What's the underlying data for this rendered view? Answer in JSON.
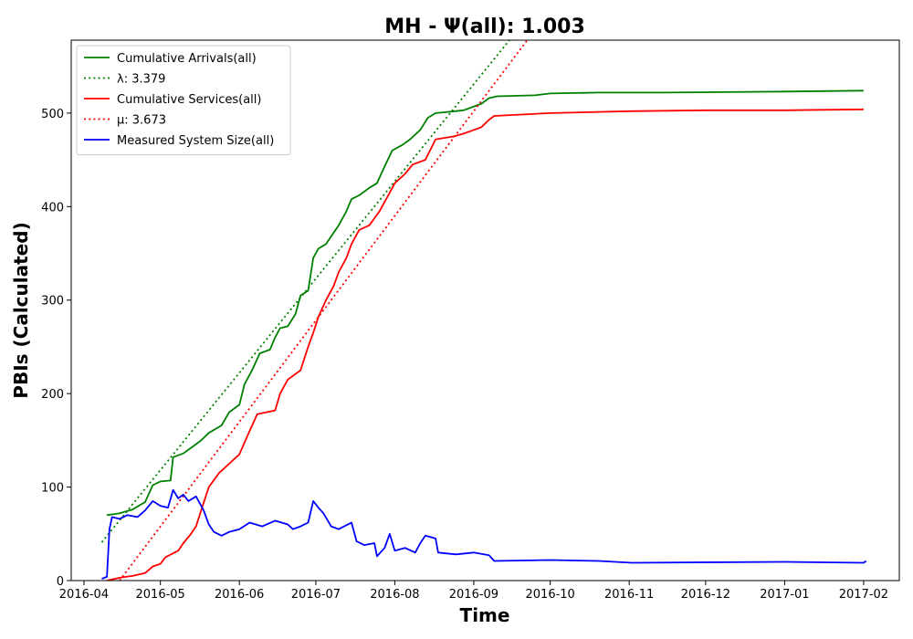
{
  "chart_data": {
    "type": "line",
    "title": "MH -  Ψ(all): 1.003",
    "xlabel": "Time",
    "ylabel": "PBIs (Calculated)",
    "x_axis_type": "date",
    "xlim": [
      "2016-03-27",
      "2017-02-15"
    ],
    "ylim": [
      0,
      578
    ],
    "x_ticks": [
      "2016-04",
      "2016-05",
      "2016-06",
      "2016-07",
      "2016-08",
      "2016-09",
      "2016-10",
      "2016-11",
      "2016-12",
      "2017-01",
      "2017-02"
    ],
    "y_ticks": [
      0,
      100,
      200,
      300,
      400,
      500
    ],
    "grid": false,
    "legend_position": "top-left",
    "series": [
      {
        "name": "Cumulative Arrivals(all)",
        "color": "#008000",
        "style": "solid",
        "points": [
          [
            "2016-04-10",
            70
          ],
          [
            "2016-04-15",
            72
          ],
          [
            "2016-04-20",
            76
          ],
          [
            "2016-04-25",
            84
          ],
          [
            "2016-04-28",
            102
          ],
          [
            "2016-05-01",
            106
          ],
          [
            "2016-05-05",
            107
          ],
          [
            "2016-05-06",
            132
          ],
          [
            "2016-05-10",
            136
          ],
          [
            "2016-05-13",
            142
          ],
          [
            "2016-05-17",
            150
          ],
          [
            "2016-05-20",
            158
          ],
          [
            "2016-05-25",
            166
          ],
          [
            "2016-05-28",
            180
          ],
          [
            "2016-06-01",
            188
          ],
          [
            "2016-06-03",
            210
          ],
          [
            "2016-06-06",
            225
          ],
          [
            "2016-06-09",
            243
          ],
          [
            "2016-06-13",
            247
          ],
          [
            "2016-06-15",
            260
          ],
          [
            "2016-06-17",
            270
          ],
          [
            "2016-06-20",
            272
          ],
          [
            "2016-06-23",
            285
          ],
          [
            "2016-06-25",
            305
          ],
          [
            "2016-06-28",
            310
          ],
          [
            "2016-06-30",
            345
          ],
          [
            "2016-07-02",
            355
          ],
          [
            "2016-07-05",
            360
          ],
          [
            "2016-07-08",
            372
          ],
          [
            "2016-07-10",
            380
          ],
          [
            "2016-07-13",
            395
          ],
          [
            "2016-07-15",
            408
          ],
          [
            "2016-07-18",
            412
          ],
          [
            "2016-07-22",
            420
          ],
          [
            "2016-07-25",
            425
          ],
          [
            "2016-07-28",
            443
          ],
          [
            "2016-07-31",
            460
          ],
          [
            "2016-08-04",
            466
          ],
          [
            "2016-08-07",
            472
          ],
          [
            "2016-08-11",
            482
          ],
          [
            "2016-08-14",
            495
          ],
          [
            "2016-08-17",
            500
          ],
          [
            "2016-08-21",
            501
          ],
          [
            "2016-08-28",
            503
          ],
          [
            "2016-09-04",
            510
          ],
          [
            "2016-09-07",
            516
          ],
          [
            "2016-09-10",
            518
          ],
          [
            "2016-09-25",
            519
          ],
          [
            "2016-10-01",
            521
          ],
          [
            "2016-10-20",
            522
          ],
          [
            "2016-11-15",
            522
          ],
          [
            "2017-01-01",
            523
          ],
          [
            "2017-02-01",
            524
          ]
        ]
      },
      {
        "name": "λ: 3.379",
        "color": "#008000",
        "style": "dotted",
        "points": [
          [
            "2016-04-08",
            41
          ],
          [
            "2016-09-15",
            578
          ]
        ]
      },
      {
        "name": "Cumulative Services(all)",
        "color": "#ff0000",
        "style": "solid",
        "points": [
          [
            "2016-04-10",
            0
          ],
          [
            "2016-04-15",
            3
          ],
          [
            "2016-04-20",
            5
          ],
          [
            "2016-04-25",
            8
          ],
          [
            "2016-04-28",
            15
          ],
          [
            "2016-05-01",
            18
          ],
          [
            "2016-05-03",
            25
          ],
          [
            "2016-05-08",
            32
          ],
          [
            "2016-05-10",
            40
          ],
          [
            "2016-05-13",
            50
          ],
          [
            "2016-05-15",
            58
          ],
          [
            "2016-05-17",
            75
          ],
          [
            "2016-05-20",
            100
          ],
          [
            "2016-05-24",
            115
          ],
          [
            "2016-05-28",
            125
          ],
          [
            "2016-06-01",
            135
          ],
          [
            "2016-06-05",
            160
          ],
          [
            "2016-06-08",
            178
          ],
          [
            "2016-06-15",
            182
          ],
          [
            "2016-06-17",
            200
          ],
          [
            "2016-06-20",
            215
          ],
          [
            "2016-06-25",
            225
          ],
          [
            "2016-06-28",
            250
          ],
          [
            "2016-06-30",
            265
          ],
          [
            "2016-07-02",
            282
          ],
          [
            "2016-07-05",
            300
          ],
          [
            "2016-07-08",
            315
          ],
          [
            "2016-07-10",
            330
          ],
          [
            "2016-07-13",
            345
          ],
          [
            "2016-07-15",
            360
          ],
          [
            "2016-07-18",
            375
          ],
          [
            "2016-07-22",
            380
          ],
          [
            "2016-07-26",
            395
          ],
          [
            "2016-07-29",
            410
          ],
          [
            "2016-08-01",
            425
          ],
          [
            "2016-08-05",
            435
          ],
          [
            "2016-08-08",
            445
          ],
          [
            "2016-08-13",
            450
          ],
          [
            "2016-08-17",
            472
          ],
          [
            "2016-08-24",
            475
          ],
          [
            "2016-08-28",
            478
          ],
          [
            "2016-09-04",
            485
          ],
          [
            "2016-09-07",
            493
          ],
          [
            "2016-09-09",
            497
          ],
          [
            "2016-10-01",
            500
          ],
          [
            "2016-11-01",
            502
          ],
          [
            "2016-12-01",
            503
          ],
          [
            "2017-01-01",
            503
          ],
          [
            "2017-02-01",
            504
          ]
        ]
      },
      {
        "name": "μ: 3.673",
        "color": "#ff0000",
        "style": "dotted",
        "points": [
          [
            "2016-04-15",
            0
          ],
          [
            "2016-09-22",
            578
          ]
        ]
      },
      {
        "name": "Measured System Size(all)",
        "color": "#0000ff",
        "style": "solid",
        "points": [
          [
            "2016-04-08",
            2
          ],
          [
            "2016-04-10",
            4
          ],
          [
            "2016-04-11",
            55
          ],
          [
            "2016-04-12",
            68
          ],
          [
            "2016-04-15",
            66
          ],
          [
            "2016-04-18",
            70
          ],
          [
            "2016-04-22",
            68
          ],
          [
            "2016-04-25",
            75
          ],
          [
            "2016-04-28",
            85
          ],
          [
            "2016-05-01",
            80
          ],
          [
            "2016-05-04",
            78
          ],
          [
            "2016-05-06",
            97
          ],
          [
            "2016-05-08",
            88
          ],
          [
            "2016-05-10",
            92
          ],
          [
            "2016-05-12",
            85
          ],
          [
            "2016-05-15",
            90
          ],
          [
            "2016-05-18",
            75
          ],
          [
            "2016-05-20",
            60
          ],
          [
            "2016-05-22",
            52
          ],
          [
            "2016-05-25",
            48
          ],
          [
            "2016-05-28",
            52
          ],
          [
            "2016-06-01",
            55
          ],
          [
            "2016-06-05",
            62
          ],
          [
            "2016-06-10",
            58
          ],
          [
            "2016-06-15",
            64
          ],
          [
            "2016-06-20",
            60
          ],
          [
            "2016-06-22",
            55
          ],
          [
            "2016-06-25",
            58
          ],
          [
            "2016-06-28",
            62
          ],
          [
            "2016-06-30",
            85
          ],
          [
            "2016-07-02",
            78
          ],
          [
            "2016-07-04",
            72
          ],
          [
            "2016-07-07",
            58
          ],
          [
            "2016-07-10",
            55
          ],
          [
            "2016-07-15",
            62
          ],
          [
            "2016-07-17",
            42
          ],
          [
            "2016-07-20",
            38
          ],
          [
            "2016-07-24",
            40
          ],
          [
            "2016-07-25",
            26
          ],
          [
            "2016-07-28",
            35
          ],
          [
            "2016-07-30",
            50
          ],
          [
            "2016-08-01",
            32
          ],
          [
            "2016-08-05",
            35
          ],
          [
            "2016-08-09",
            30
          ],
          [
            "2016-08-11",
            40
          ],
          [
            "2016-08-13",
            48
          ],
          [
            "2016-08-17",
            45
          ],
          [
            "2016-08-18",
            30
          ],
          [
            "2016-08-25",
            28
          ],
          [
            "2016-09-01",
            30
          ],
          [
            "2016-09-07",
            27
          ],
          [
            "2016-09-09",
            21
          ],
          [
            "2016-10-01",
            22
          ],
          [
            "2016-10-20",
            21
          ],
          [
            "2016-11-02",
            19
          ],
          [
            "2017-01-01",
            20
          ],
          [
            "2017-02-01",
            19
          ],
          [
            "2017-02-02",
            21
          ]
        ]
      }
    ]
  }
}
